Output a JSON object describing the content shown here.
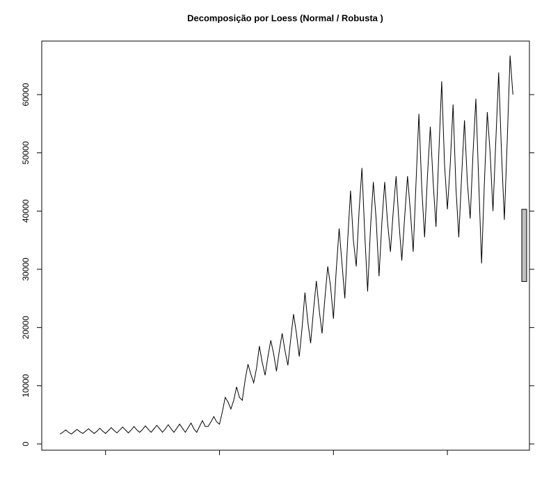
{
  "chart_data": {
    "type": "line",
    "title": "Decomposição por Loess (Normal / Robusta )",
    "x": [
      1976,
      1976.25,
      1976.5,
      1976.75,
      1977,
      1977.25,
      1977.5,
      1977.75,
      1978,
      1978.25,
      1978.5,
      1978.75,
      1979,
      1979.25,
      1979.5,
      1979.75,
      1980,
      1980.25,
      1980.5,
      1980.75,
      1981,
      1981.25,
      1981.5,
      1981.75,
      1982,
      1982.25,
      1982.5,
      1982.75,
      1983,
      1983.25,
      1983.5,
      1983.75,
      1984,
      1984.25,
      1984.5,
      1984.75,
      1985,
      1985.25,
      1985.5,
      1985.75,
      1986,
      1986.25,
      1986.5,
      1986.75,
      1987,
      1987.25,
      1987.5,
      1987.75,
      1988,
      1988.25,
      1988.5,
      1988.75,
      1989,
      1989.25,
      1989.5,
      1989.75,
      1990,
      1990.25,
      1990.5,
      1990.75,
      1991,
      1991.25,
      1991.5,
      1991.75,
      1992,
      1992.25,
      1992.5,
      1992.75,
      1993,
      1993.25,
      1993.5,
      1993.75,
      1994,
      1994.25,
      1994.5,
      1994.75,
      1995,
      1995.25,
      1995.5,
      1995.75,
      1996,
      1996.25,
      1996.5,
      1996.75,
      1997,
      1997.25,
      1997.5,
      1997.75,
      1998,
      1998.25,
      1998.5,
      1998.75,
      1999,
      1999.25,
      1999.5,
      1999.75,
      2000,
      2000.25,
      2000.5,
      2000.75,
      2001,
      2001.25,
      2001.5,
      2001.75,
      2002,
      2002.25,
      2002.5,
      2002.75,
      2003,
      2003.25,
      2003.5,
      2003.75,
      2004,
      2004.25,
      2004.5,
      2004.75,
      2005,
      2005.25,
      2005.5,
      2005.75,
      2006,
      2006.25,
      2006.5,
      2006.75,
      2007,
      2007.25,
      2007.5,
      2007.75,
      2008,
      2008.25,
      2008.5,
      2008.75,
      2009,
      2009.25,
      2009.5,
      2009.75,
      2010,
      2010.25,
      2010.5,
      2010.75,
      2011,
      2011.25,
      2011.5,
      2011.75,
      2012,
      2012.25,
      2012.5,
      2012.75,
      2013,
      2013.25,
      2013.5,
      2013.75,
      2014,
      2014.25,
      2014.5,
      2014.75,
      2015,
      2015.25,
      2015.5,
      2015.75
    ],
    "values": [
      1700,
      2000,
      2400,
      2000,
      1700,
      2100,
      2500,
      2100,
      1800,
      2200,
      2600,
      2200,
      1800,
      2200,
      2700,
      2200,
      1800,
      2300,
      2800,
      2300,
      1900,
      2400,
      2900,
      2400,
      1900,
      2400,
      3000,
      2400,
      2000,
      2500,
      3100,
      2500,
      2000,
      2600,
      3200,
      2600,
      2000,
      2600,
      3300,
      2600,
      2000,
      2700,
      3400,
      2700,
      2000,
      2800,
      3600,
      2600,
      2000,
      3000,
      4000,
      3000,
      3000,
      3800,
      4700,
      3800,
      3400,
      5500,
      8000,
      7200,
      6000,
      7500,
      9800,
      8000,
      7500,
      11000,
      13700,
      12000,
      10500,
      13000,
      16800,
      14000,
      11800,
      15000,
      17800,
      15500,
      12500,
      16000,
      19000,
      16000,
      13500,
      18000,
      22300,
      19000,
      15000,
      20000,
      26000,
      21000,
      17300,
      23000,
      28000,
      23000,
      19000,
      25000,
      30500,
      27000,
      21500,
      30000,
      37000,
      31000,
      25000,
      35000,
      43500,
      35000,
      30500,
      40000,
      47400,
      36000,
      26200,
      37000,
      45000,
      38500,
      28800,
      38000,
      45000,
      38000,
      33000,
      40000,
      46000,
      38000,
      31500,
      39000,
      46000,
      40000,
      33000,
      45000,
      56700,
      44000,
      35500,
      46000,
      54500,
      45000,
      37300,
      50000,
      62300,
      48000,
      40300,
      48000,
      58300,
      44000,
      35500,
      46000,
      55600,
      45000,
      38700,
      50000,
      59300,
      45000,
      31000,
      45000,
      57000,
      50000,
      40000,
      52000,
      63800,
      50000,
      38500,
      52000,
      66700,
      60000
    ],
    "color": "#000000",
    "xlim": [
      1974.4,
      2017.2
    ],
    "xticks": [
      1980,
      1990,
      2000,
      2010
    ],
    "ylim": [
      -1075,
      69200
    ],
    "yticks": [
      0,
      10000,
      20000,
      30000,
      40000,
      50000,
      60000
    ],
    "range_bar": [
      27900,
      40300
    ],
    "range_bar_color": "#c0c0c0"
  }
}
